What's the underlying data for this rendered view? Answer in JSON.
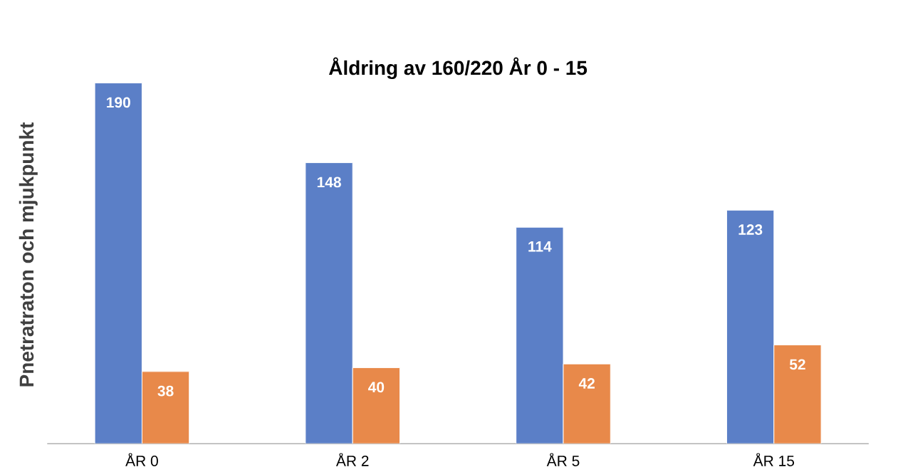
{
  "chart_data": {
    "type": "bar",
    "title": "Åldring av 160/220 År 0 - 15",
    "ylabel": "Pnetratraton och mjukpunkt",
    "categories": [
      "ÅR 0",
      "ÅR 2",
      "ÅR 5",
      "ÅR 15"
    ],
    "series": [
      {
        "color": "#5b7fc7",
        "values": [
          190,
          148,
          114,
          123
        ]
      },
      {
        "color": "#e8894a",
        "values": [
          38,
          40,
          42,
          52
        ]
      }
    ],
    "data_labels": true,
    "tick_labels": "x"
  }
}
